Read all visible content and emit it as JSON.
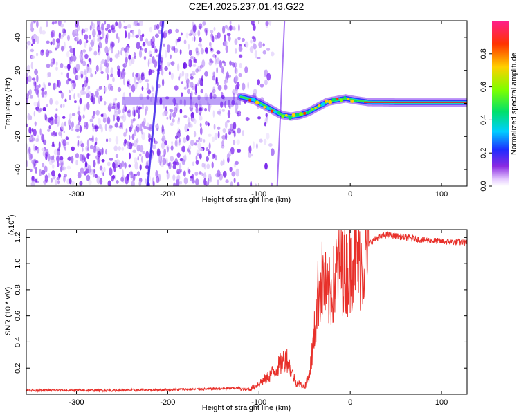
{
  "chart_data": [
    {
      "type": "heatmap",
      "title": "C2E4.2025.237.01.43.G22",
      "xlabel": "Height of straight line (km)",
      "ylabel": "Frequency (Hz)",
      "xlim": [
        -355,
        128
      ],
      "ylim": [
        -50,
        50
      ],
      "xticks": [
        -300,
        -200,
        -100,
        0,
        100
      ],
      "yticks": [
        -40,
        -20,
        0,
        20,
        40
      ],
      "colorbar": {
        "label": "Normalized spectral amplitude",
        "range": [
          0,
          1
        ],
        "ticks": [
          "0.0",
          "0.2",
          "0.4",
          "0.6",
          "0.8"
        ]
      },
      "ridge": {
        "x": [
          -120,
          -105,
          -95,
          -85,
          -75,
          -65,
          -55,
          -45,
          -35,
          -25,
          -15,
          -5,
          5,
          20,
          50,
          80,
          128
        ],
        "y": [
          4,
          2,
          -1,
          -4,
          -7,
          -8,
          -7,
          -5,
          -2,
          1,
          2,
          3,
          2,
          0.8,
          0.6,
          0.6,
          0.6
        ]
      },
      "noise_zone_below_x": -120,
      "diagonal_streaks": [
        {
          "x_at_bottom": -222,
          "x_at_top": -205
        },
        {
          "x_at_bottom": -80,
          "x_at_top": -72
        }
      ]
    },
    {
      "type": "line",
      "xlabel": "Height of straight line (km)",
      "ylabel": "SNR (10 * v/v)",
      "y_multiplier_label": "(x10",
      "y_multiplier_exponent": "4",
      "xlim": [
        -355,
        128
      ],
      "ylim": [
        0,
        1.26
      ],
      "xticks": [
        -300,
        -200,
        -100,
        0,
        100
      ],
      "yticks": [
        "0.2",
        "0.4",
        "0.6",
        "0.8",
        "1.0",
        "1.2"
      ],
      "series_color": "#e8302a",
      "envelope": {
        "x": [
          -355,
          -250,
          -150,
          -110,
          -100,
          -90,
          -80,
          -70,
          -60,
          -50,
          -45,
          -40,
          -35,
          -30,
          -25,
          -20,
          -15,
          -10,
          -5,
          0,
          5,
          10,
          20,
          30,
          40,
          60,
          80,
          100,
          128
        ],
        "y": [
          0.02,
          0.02,
          0.03,
          0.04,
          0.09,
          0.14,
          0.22,
          0.3,
          0.1,
          0.06,
          0.15,
          0.45,
          0.85,
          0.95,
          0.8,
          0.85,
          1.0,
          1.05,
          1.0,
          1.02,
          1.2,
          1.05,
          1.15,
          1.2,
          1.22,
          1.2,
          1.18,
          1.17,
          1.16
        ]
      }
    }
  ]
}
